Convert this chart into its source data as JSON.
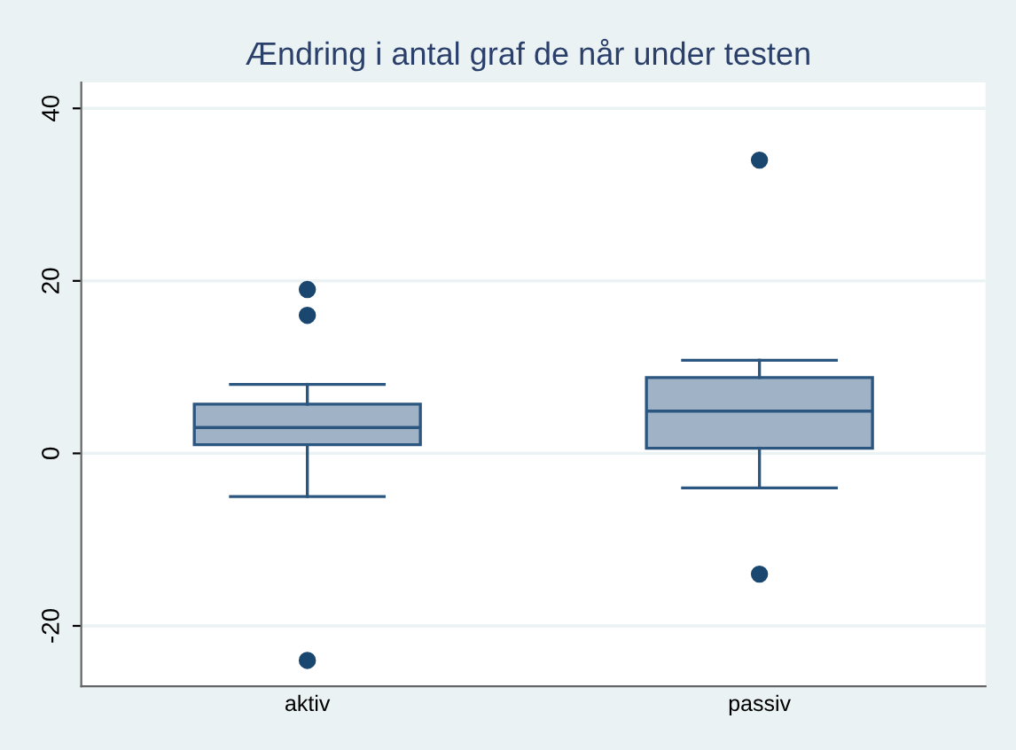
{
  "chart_data": {
    "type": "box",
    "title": "Ændring i antal graf de når under testen",
    "categories": [
      "aktiv",
      "passiv"
    ],
    "boxes": [
      {
        "low": -5,
        "q1": 1,
        "median": 3,
        "q3": 5.7,
        "high": 8,
        "outliers": [
          19,
          16,
          -24
        ]
      },
      {
        "low": -4,
        "q1": 0.6,
        "median": 4.9,
        "q3": 8.8,
        "high": 10.8,
        "outliers": [
          34,
          -14
        ]
      }
    ],
    "color": "#a0b2c6",
    "ylim": [
      -27,
      43
    ],
    "yticks": [
      -20,
      0,
      20,
      40
    ],
    "grid": "y"
  }
}
